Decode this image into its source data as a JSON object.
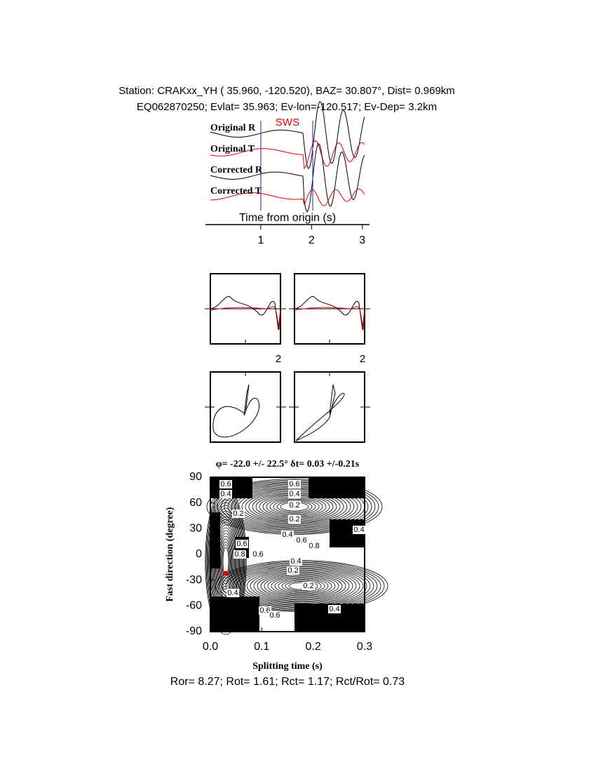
{
  "header": {
    "line1": "Station: CRAKxx_YH ( 35.960, -120.520), BAZ=   30.807°, Dist=    0.969km",
    "line2": "EQ062870250; Evlat=  35.963; Ev-lon=-120.517; Ev-Dep=  3.2km"
  },
  "traces": {
    "labels": [
      "Original R",
      "Original T",
      "Corrected R",
      "Corrected T"
    ],
    "sws_label": "SWS"
  },
  "windows": {
    "tick_labels": [
      "2",
      "2"
    ]
  },
  "footer": "Ror= 8.27; Rot= 1.61; Rct= 1.17; Rct/Rot= 0.73",
  "chart_data": [
    {
      "type": "time-axis",
      "x_label": "Time from origin (s)",
      "xlim": [
        0,
        3.1
      ],
      "xticks": [
        1,
        2,
        3
      ]
    },
    {
      "type": "contour",
      "title": "φ= -22.0 +/- 22.5° δt= 0.03 +/-0.21s",
      "x_label": "Splitting time (s)",
      "y_label": "Fast direction (degree)",
      "xlim": [
        0,
        0.3
      ],
      "ylim": [
        -90,
        90
      ],
      "xticks": [
        {
          "value": 0,
          "label": "0.0"
        },
        0.1,
        0.2,
        0.3
      ],
      "yticks": [
        90,
        60,
        30,
        0,
        -30,
        -60,
        -90
      ],
      "best_fit": {
        "x": 0.03,
        "y": -22,
        "color": "#e00000"
      },
      "contour_labels": [
        0.6,
        0.4,
        0.6,
        0.4,
        0.2,
        0.2,
        0.2,
        0.4,
        0.4,
        0.6,
        0.8,
        0.6,
        0.8,
        0.6,
        0.4,
        0.2,
        0.2,
        0.4,
        0.6,
        0.4,
        0.6
      ]
    }
  ]
}
